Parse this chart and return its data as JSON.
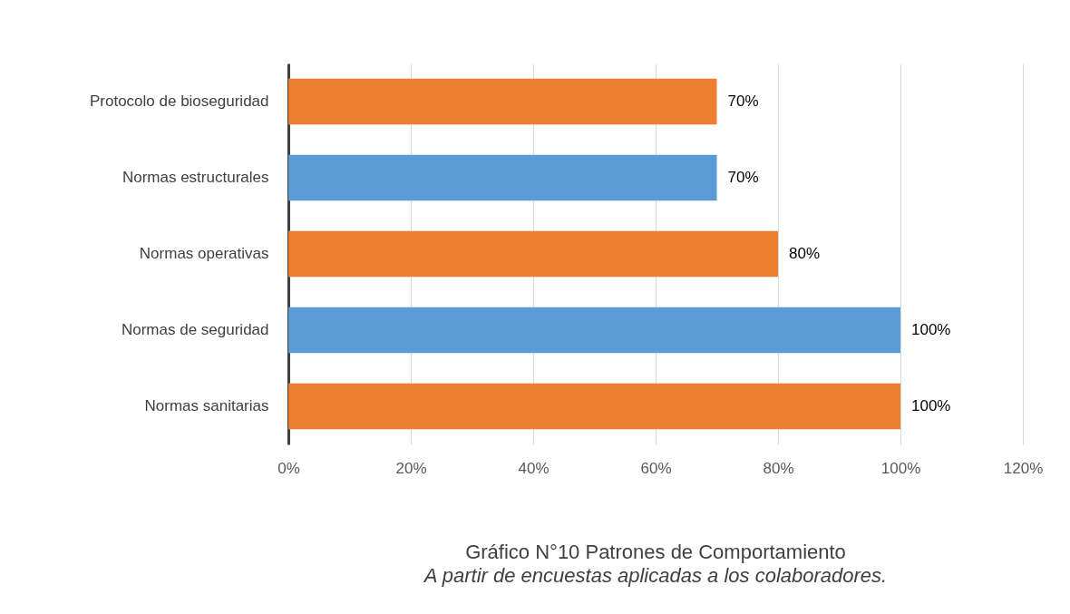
{
  "chart_data": {
    "type": "bar",
    "orientation": "horizontal",
    "title": "Gráfico N°10 Patrones de Comportamiento",
    "subtitle": "A partir de encuestas aplicadas a los colaboradores.",
    "categories": [
      "Protocolo de bioseguridad",
      "Normas estructurales",
      "Normas operativas",
      "Normas de seguridad",
      "Normas sanitarias"
    ],
    "values": [
      70,
      70,
      80,
      100,
      100
    ],
    "colors": [
      "#ed7d31",
      "#5b9bd5",
      "#ed7d31",
      "#5b9bd5",
      "#ed7d31"
    ],
    "value_labels": [
      "70%",
      "70%",
      "80%",
      "100%",
      "100%"
    ],
    "xlim": [
      0,
      120
    ],
    "xticks": [
      {
        "value": 0,
        "label": "0%"
      },
      {
        "value": 20,
        "label": "20%"
      },
      {
        "value": 40,
        "label": "40%"
      },
      {
        "value": 60,
        "label": "60%"
      },
      {
        "value": 80,
        "label": "80%"
      },
      {
        "value": 100,
        "label": "100%"
      },
      {
        "value": 120,
        "label": "120%"
      }
    ],
    "grid": "x",
    "legend": false
  }
}
